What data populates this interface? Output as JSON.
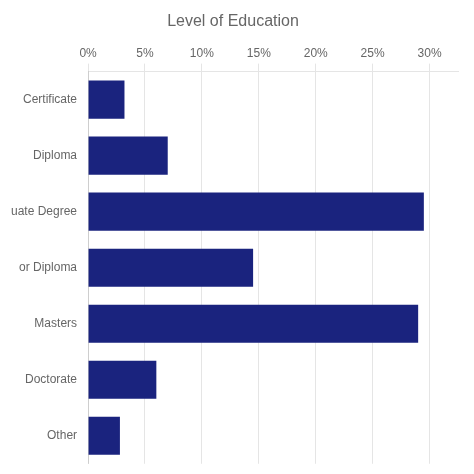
{
  "chart_data": {
    "type": "bar",
    "orientation": "horizontal",
    "title": "Level of Education",
    "categories": [
      "Certificate",
      "Diploma",
      "uate Degree",
      "or Diploma",
      "Masters",
      "Doctorate",
      "Other"
    ],
    "values": [
      3.2,
      7.0,
      29.5,
      14.5,
      29.0,
      6.0,
      2.8
    ],
    "color": "#1a237e",
    "xlim": [
      0,
      32.5
    ],
    "xticks": [
      {
        "value": 0,
        "label": "0%"
      },
      {
        "value": 5,
        "label": "5%"
      },
      {
        "value": 10,
        "label": "10%"
      },
      {
        "value": 15,
        "label": "15%"
      },
      {
        "value": 20,
        "label": "20%"
      },
      {
        "value": 25,
        "label": "25%"
      },
      {
        "value": 30,
        "label": "30%"
      }
    ],
    "grid": true
  }
}
